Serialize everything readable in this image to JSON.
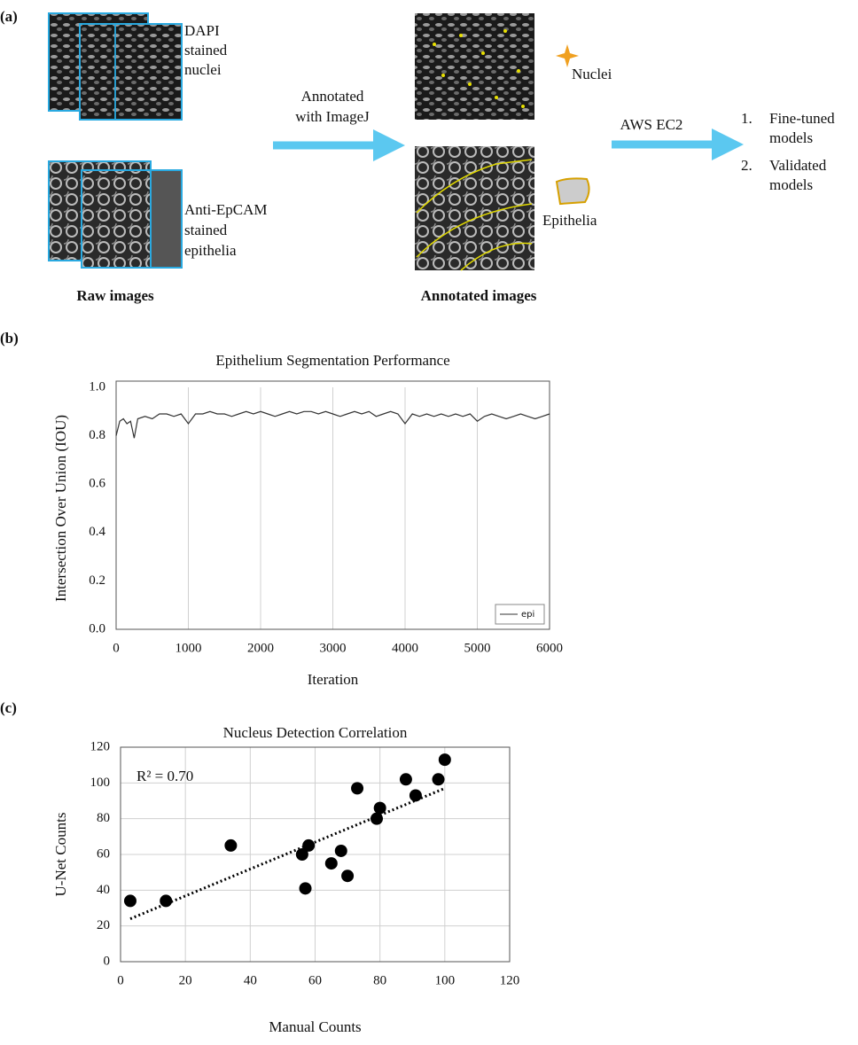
{
  "panel_labels": [
    "(a)",
    "(b)",
    "(c)"
  ],
  "diagram": {
    "raw": {
      "dapi_text": [
        "DAPI",
        "stained",
        "nuclei"
      ],
      "epcam_text": [
        "Anti-EpCAM",
        "stained",
        "epithelia"
      ],
      "caption": "Raw images"
    },
    "arrow1_text": [
      "Annotated",
      "with ImageJ"
    ],
    "annotated": {
      "nuclei": "Nuclei",
      "epithelia": "Epithelia",
      "caption": "Annotated images"
    },
    "arrow2_text": "AWS EC2",
    "outputs": [
      {
        "marker": "1.",
        "lines": [
          "Fine-tuned",
          "models"
        ]
      },
      {
        "marker": "2.",
        "lines": [
          "Validated",
          "models"
        ]
      }
    ]
  },
  "chart_data": [
    {
      "type": "line",
      "title": "Epithelium Segmentation Performance",
      "x_label": "Iteration",
      "y_label": "Intersection Over Union (IOU)",
      "x": [
        0,
        50,
        100,
        150,
        200,
        250,
        300,
        400,
        500,
        600,
        700,
        800,
        900,
        1000,
        1100,
        1200,
        1300,
        1400,
        1500,
        1600,
        1700,
        1800,
        1900,
        2000,
        2100,
        2200,
        2300,
        2400,
        2500,
        2600,
        2700,
        2800,
        2900,
        3000,
        3100,
        3200,
        3300,
        3400,
        3500,
        3600,
        3700,
        3800,
        3900,
        4000,
        4100,
        4200,
        4300,
        4400,
        4500,
        4600,
        4700,
        4800,
        4900,
        5000,
        5100,
        5200,
        5300,
        5400,
        5500,
        5600,
        5700,
        5800,
        5900,
        6000
      ],
      "series": [
        {
          "name": "epi",
          "color": "#333333",
          "values": [
            0.8,
            0.86,
            0.87,
            0.85,
            0.86,
            0.79,
            0.87,
            0.88,
            0.87,
            0.89,
            0.89,
            0.88,
            0.89,
            0.85,
            0.89,
            0.89,
            0.9,
            0.89,
            0.89,
            0.88,
            0.89,
            0.9,
            0.89,
            0.9,
            0.89,
            0.88,
            0.89,
            0.9,
            0.89,
            0.9,
            0.9,
            0.89,
            0.9,
            0.89,
            0.88,
            0.89,
            0.9,
            0.89,
            0.9,
            0.88,
            0.89,
            0.9,
            0.89,
            0.85,
            0.89,
            0.88,
            0.89,
            0.88,
            0.89,
            0.88,
            0.89,
            0.88,
            0.89,
            0.86,
            0.88,
            0.89,
            0.88,
            0.87,
            0.88,
            0.89,
            0.88,
            0.87,
            0.88,
            0.89
          ]
        }
      ],
      "xlim": [
        0,
        6000
      ],
      "xticks": [
        0,
        1000,
        2000,
        3000,
        4000,
        5000,
        6000
      ],
      "ylim": [
        0,
        1
      ],
      "yticks": [
        {
          "value": 0,
          "label": "0.0"
        },
        {
          "value": 0.2,
          "label": "0.2"
        },
        {
          "value": 0.4,
          "label": "0.4"
        },
        {
          "value": 0.6,
          "label": "0.6"
        },
        {
          "value": 0.8,
          "label": "0.8"
        },
        {
          "value": 1,
          "label": "1.0"
        }
      ],
      "grid": "x",
      "legend": "lower right"
    },
    {
      "type": "scatter",
      "title": "Nucleus Detection Correlation",
      "x_label": "Manual Counts",
      "y_label": "U-Net Counts",
      "annotation": "R² = 0.70",
      "series": [
        {
          "color": "#000000",
          "x": [
            3,
            14,
            34,
            56,
            57,
            58,
            65,
            68,
            70,
            73,
            79,
            80,
            88,
            91,
            98,
            100
          ],
          "values": [
            34,
            34,
            65,
            60,
            41,
            65,
            55,
            62,
            48,
            97,
            80,
            86,
            102,
            93,
            102,
            113
          ]
        }
      ],
      "trendline": {
        "x": [
          3,
          100
        ],
        "values": [
          24,
          97
        ],
        "color": "#000000"
      },
      "xlim": [
        0,
        120
      ],
      "xticks": [
        0,
        20,
        40,
        60,
        80,
        100,
        120
      ],
      "ylim": [
        0,
        120
      ],
      "yticks": [
        0,
        20,
        40,
        60,
        80,
        100,
        120
      ],
      "grid": "both"
    }
  ]
}
